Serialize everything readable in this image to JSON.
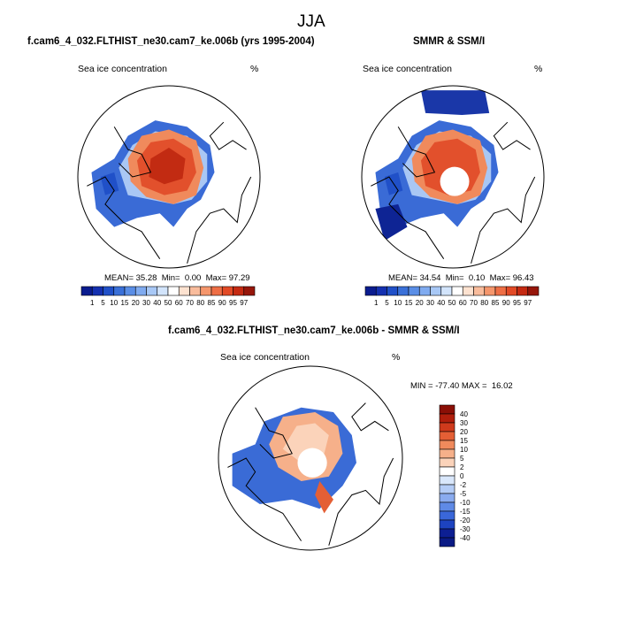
{
  "header": {
    "season": "JJA"
  },
  "left": {
    "title": "f.cam6_4_032.FLTHIST_ne30.cam7_ke.006b (yrs 1995-2004)",
    "var_label": "Sea ice concentration",
    "units": "%",
    "mean_label": "MEAN=",
    "mean": "35.28",
    "min_label": "Min=",
    "min": "0.00",
    "max_label": "Max=",
    "max": "97.29"
  },
  "right": {
    "title": "SMMR & SSM/I",
    "var_label": "Sea ice concentration",
    "units": "%",
    "mean_label": "MEAN=",
    "mean": "34.54",
    "min_label": "Min=",
    "min": "0.10",
    "max_label": "Max=",
    "max": "96.43"
  },
  "diff": {
    "title": "f.cam6_4_032.FLTHIST_ne30.cam7_ke.006b - SMMR & SSM/I",
    "var_label": "Sea ice concentration",
    "units": "%",
    "minmax": "MIN = -77.40 MAX =  16.02"
  },
  "colors": {
    "ice_scale": [
      "#0a1c8f",
      "#1430b0",
      "#2050c8",
      "#3a70d8",
      "#5a8ee6",
      "#80abf0",
      "#a8c8f6",
      "#d2e4fb",
      "#ffffff",
      "#fde2d0",
      "#f9bc9c",
      "#f5966c",
      "#ee6e45",
      "#e24a26",
      "#c52a12",
      "#96160a"
    ],
    "diff_scale": [
      "#8b0f06",
      "#b01e0c",
      "#cf3a1c",
      "#e45f35",
      "#f08a5c",
      "#f6b08a",
      "#fbd3ba",
      "#ffffff",
      "#d9e7fb",
      "#b4ccf6",
      "#8aabef",
      "#5f8ae6",
      "#3a67d9",
      "#1d43c0",
      "#0d1f93"
    ],
    "ocean": "#ffffff",
    "outline": "#000000"
  },
  "chart_data": [
    {
      "type": "heatmap",
      "title": "f.cam6_4_032.FLTHIST_ne30.cam7_ke.006b (yrs 1995-2004)",
      "variable": "Sea ice concentration",
      "units": "%",
      "colorbar_ticks": [
        "1",
        "5",
        "10",
        "15",
        "20",
        "30",
        "40",
        "50",
        "60",
        "70",
        "80",
        "85",
        "90",
        "95",
        "97"
      ],
      "mean": 35.28,
      "min": 0.0,
      "max": 97.29
    },
    {
      "type": "heatmap",
      "title": "SMMR & SSM/I",
      "variable": "Sea ice concentration",
      "units": "%",
      "colorbar_ticks": [
        "1",
        "5",
        "10",
        "15",
        "20",
        "30",
        "40",
        "50",
        "60",
        "70",
        "80",
        "85",
        "90",
        "95",
        "97"
      ],
      "mean": 34.54,
      "min": 0.1,
      "max": 96.43
    },
    {
      "type": "heatmap",
      "title": "f.cam6_4_032.FLTHIST_ne30.cam7_ke.006b - SMMR & SSM/I",
      "variable": "Sea ice concentration",
      "units": "%",
      "colorbar_ticks": [
        "40",
        "30",
        "20",
        "15",
        "10",
        "5",
        "2",
        "0",
        "-2",
        "-5",
        "-10",
        "-15",
        "-20",
        "-30",
        "-40"
      ],
      "min": -77.4,
      "max": 16.02
    }
  ]
}
